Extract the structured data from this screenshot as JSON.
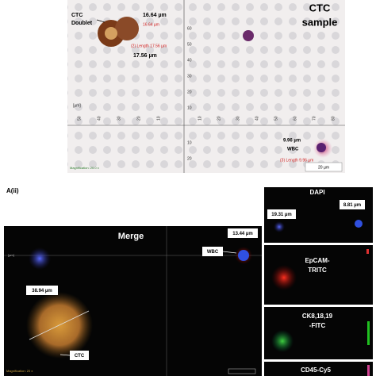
{
  "panel_a_i": {
    "doublet_label": [
      "CTC",
      "Doublet"
    ],
    "doublet_width": "16.64 µm",
    "doublet_width_small": "16.64 µm",
    "doublet_length_small": "(2) Length 17.56 µm",
    "doublet_length": "17.56 µm",
    "sample_title": [
      "CTC",
      "sample"
    ],
    "wbc_size": "9.96 µm",
    "wbc_label": "WBC",
    "wbc_length_small": "(3) Length 9.96 µm",
    "scale_bar": "20 µm",
    "magnification": "Magnification: 20.0 x",
    "unit": "[µm]",
    "y_ticks_up": [
      "60",
      "50",
      "40",
      "30",
      "20",
      "10"
    ],
    "y_ticks_down": [
      "10",
      "20"
    ],
    "x_ticks_left": [
      "50",
      "40",
      "30",
      "20",
      "10"
    ],
    "x_ticks_right": [
      "10",
      "20",
      "30",
      "40",
      "50",
      "60",
      "70",
      "80"
    ]
  },
  "panel_a_ii": {
    "label": "A(ii)",
    "merge": {
      "title": "Merge",
      "wbc_size": "13.44 µm",
      "wbc_label": "WBC",
      "ctc_size": "38.94 µm",
      "ctc_label": "CTC",
      "magnification": "Magnification: 20 x",
      "unit": "[µm]"
    },
    "channels": {
      "dapi": {
        "title": "DAPI",
        "size_left": "19.31 µm",
        "size_right": "8.81 µm"
      },
      "epcam": {
        "title": [
          "EpCAM-",
          "TRITC"
        ]
      },
      "ck": {
        "title": [
          "CK8,18,19",
          "-FITC"
        ]
      },
      "cd45": {
        "title": "CD45-Cy5"
      }
    }
  }
}
